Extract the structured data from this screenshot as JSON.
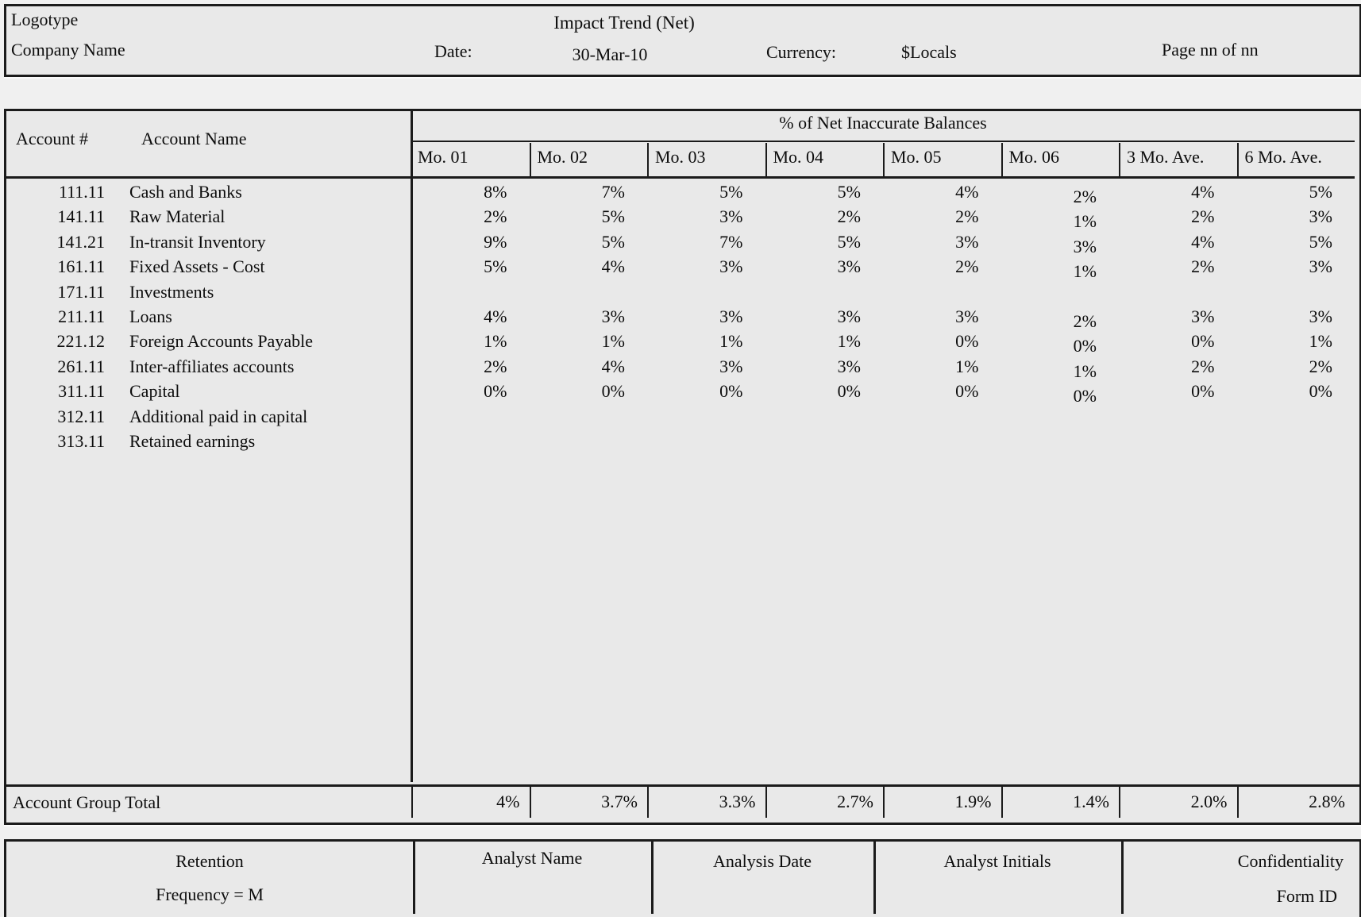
{
  "header": {
    "logotype": "Logotype",
    "company_name": "Company Name",
    "title": "Impact Trend (Net)",
    "date_label": "Date:",
    "date_value": "30-Mar-10",
    "currency_label": "Currency:",
    "currency_value": "$Locals",
    "page_label": "Page nn of nn"
  },
  "table": {
    "account_number_header": "Account #",
    "account_name_header": "Account Name",
    "group_header": "% of Net Inaccurate Balances",
    "columns": [
      "Mo. 01",
      "Mo. 02",
      "Mo. 03",
      "Mo. 04",
      "Mo. 05",
      "Mo. 06",
      "3 Mo. Ave.",
      "6 Mo. Ave."
    ],
    "rows": [
      {
        "number": "111.11",
        "name": "Cash and Banks",
        "values": [
          "8%",
          "7%",
          "5%",
          "5%",
          "4%",
          "2%",
          "4%",
          "5%"
        ]
      },
      {
        "number": "141.11",
        "name": "Raw Material",
        "values": [
          "2%",
          "5%",
          "3%",
          "2%",
          "2%",
          "1%",
          "2%",
          "3%"
        ]
      },
      {
        "number": "141.21",
        "name": "In-transit Inventory",
        "values": [
          "9%",
          "5%",
          "7%",
          "5%",
          "3%",
          "3%",
          "4%",
          "5%"
        ]
      },
      {
        "number": "161.11",
        "name": "Fixed Assets - Cost",
        "values": [
          "5%",
          "4%",
          "3%",
          "3%",
          "2%",
          "1%",
          "2%",
          "3%"
        ]
      },
      {
        "number": "171.11",
        "name": "Investments",
        "values": [
          "",
          "",
          "",
          "",
          "",
          "",
          "",
          ""
        ]
      },
      {
        "number": "211.11",
        "name": "Loans",
        "values": [
          "4%",
          "3%",
          "3%",
          "3%",
          "3%",
          "2%",
          "3%",
          "3%"
        ]
      },
      {
        "number": "221.12",
        "name": "Foreign Accounts Payable",
        "values": [
          "1%",
          "1%",
          "1%",
          "1%",
          "0%",
          "0%",
          "0%",
          "1%"
        ]
      },
      {
        "number": "261.11",
        "name": "Inter-affiliates accounts",
        "values": [
          "2%",
          "4%",
          "3%",
          "3%",
          "1%",
          "1%",
          "2%",
          "2%"
        ]
      },
      {
        "number": "311.11",
        "name": "Capital",
        "values": [
          "0%",
          "0%",
          "0%",
          "0%",
          "0%",
          "0%",
          "0%",
          "0%"
        ]
      },
      {
        "number": "312.11",
        "name": "Additional paid in capital",
        "values": [
          "",
          "",
          "",
          "",
          "",
          "",
          "",
          ""
        ]
      },
      {
        "number": "313.11",
        "name": "Retained earnings",
        "values": [
          "",
          "",
          "",
          "",
          "",
          "",
          "",
          ""
        ]
      }
    ],
    "total": {
      "label": "Account Group Total",
      "values": [
        "4%",
        "3.7%",
        "3.3%",
        "2.7%",
        "1.9%",
        "1.4%",
        "2.0%",
        "2.8%"
      ]
    }
  },
  "footer": {
    "retention_line1": "Retention",
    "retention_line2": "Frequency = M",
    "analyst_name": "Analyst Name",
    "analysis_date": "Analysis Date",
    "analyst_initials": "Analyst Initials",
    "confidentiality": "Confidentiality",
    "form_id": "Form ID"
  }
}
